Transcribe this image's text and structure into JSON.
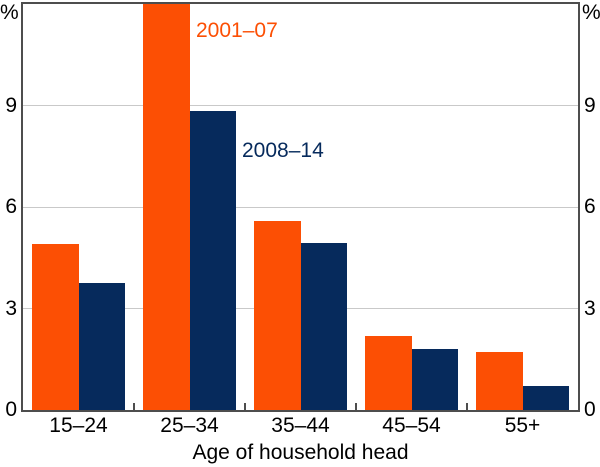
{
  "chart_data": {
    "type": "bar",
    "title": "",
    "xlabel": "Age of household head",
    "ylabel": "%",
    "unit_label": "%",
    "categories": [
      "15–24",
      "25–34",
      "35–44",
      "45–54",
      "55+"
    ],
    "series": [
      {
        "name": "2001–07",
        "color": "#FC4F04",
        "values": [
          4.9,
          12.0,
          5.6,
          2.2,
          1.7
        ]
      },
      {
        "name": "2008–14",
        "color": "#062A5C",
        "values": [
          3.75,
          8.85,
          4.95,
          1.8,
          0.7
        ]
      }
    ],
    "ylim": [
      0,
      12
    ],
    "yticks": [
      0,
      3,
      6,
      9
    ],
    "grid": true,
    "legend_position": "inside-plot-near-tallest-bars"
  },
  "colors": {
    "background": "#FFFFFF",
    "gridline": "#C9C9C9",
    "axis_border": "#4D4D4D",
    "text": "#000000"
  }
}
